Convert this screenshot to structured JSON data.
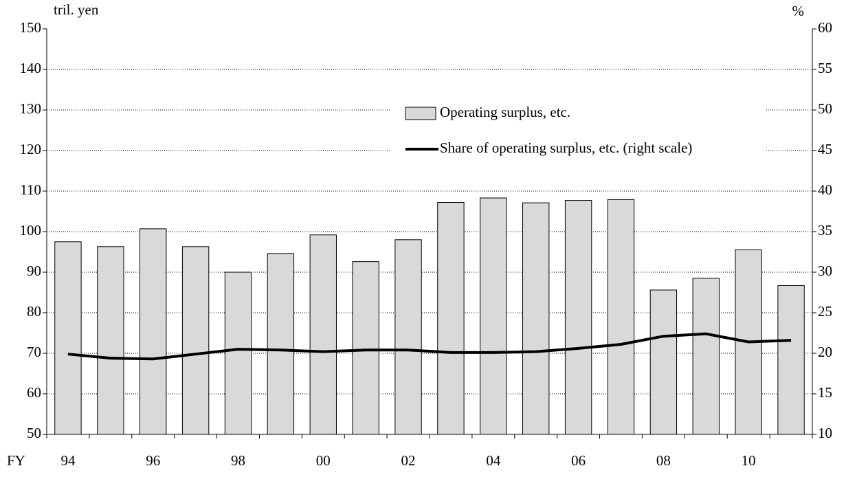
{
  "chart_data": {
    "type": "bar",
    "y_label": "tril. yen",
    "y2_label": "%",
    "x_label": "FY",
    "categories": [
      "94",
      null,
      "96",
      null,
      "98",
      null,
      "00",
      null,
      "02",
      null,
      "04",
      null,
      "06",
      null,
      "08",
      null,
      "10",
      null
    ],
    "series": [
      {
        "name": "Operating surplus, etc.",
        "type": "bar",
        "color": "#d9d9d9",
        "values": [
          97.5,
          96.3,
          100.7,
          96.3,
          90,
          94.6,
          99.2,
          92.6,
          98,
          107.2,
          108.3,
          107.1,
          107.7,
          107.9,
          85.6,
          88.5,
          95.5,
          86.7
        ]
      },
      {
        "name": "Share of operating surplus, etc. (right scale)",
        "type": "line",
        "axis": "y2",
        "color": "#000000",
        "values": [
          19.9,
          19.4,
          19.3,
          19.9,
          20.5,
          20.4,
          20.2,
          20.4,
          20.4,
          20.1,
          20.1,
          20.2,
          20.6,
          21.1,
          22.1,
          22.4,
          21.4,
          21.6
        ]
      }
    ],
    "ylim": [
      50,
      150
    ],
    "yticks": [
      50,
      60,
      70,
      80,
      90,
      100,
      110,
      120,
      130,
      140,
      150
    ],
    "y2lim": [
      10,
      60
    ],
    "y2ticks": [
      10,
      15,
      20,
      25,
      30,
      35,
      40,
      45,
      50,
      55,
      60
    ],
    "grid": true,
    "legend": "upper-right"
  }
}
